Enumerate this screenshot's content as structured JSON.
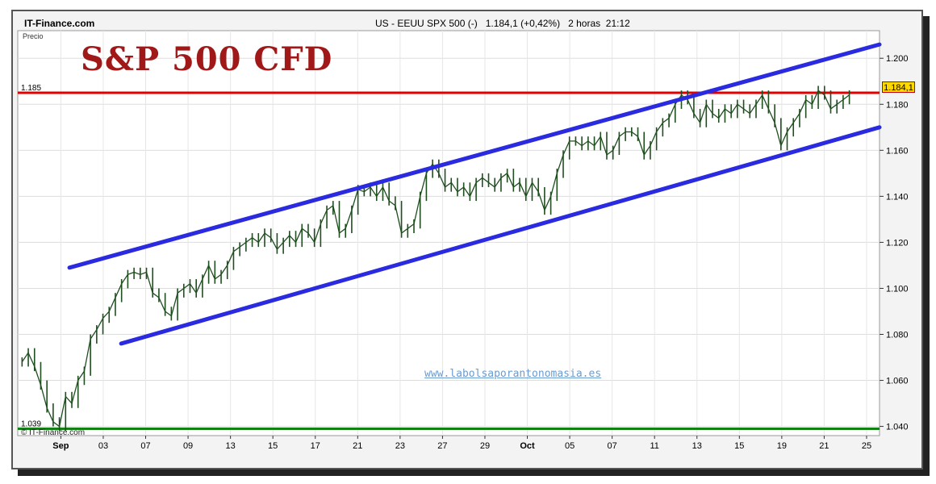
{
  "header": {
    "brand": "IT-Finance.com",
    "instrument": "US - EEUU SPX 500 (-)   1.184,1 (+0,42%)   2 horas  21:12"
  },
  "title": "S&P 500 CFD",
  "price_axis_label": "Precio",
  "watermark": "www.labolsaporantonomasia.es",
  "copyright": "© IT-Finance.com",
  "last_price_tag": "1.184,1",
  "colors": {
    "candles": "#1f4f1f",
    "channel": "#2a2ae0",
    "resistance": "#e00000",
    "support": "#138013",
    "title": "#a01818"
  },
  "chart_data": {
    "type": "line",
    "series": [
      {
        "values": [
          1068,
          1072,
          1066,
          1058,
          1048,
          1042,
          1040,
          1053,
          1050,
          1060,
          1064,
          1078,
          1082,
          1087,
          1090,
          1096,
          1102,
          1106,
          1107,
          1106,
          1107,
          1098,
          1096,
          1090,
          1088,
          1098,
          1100,
          1102,
          1098,
          1104,
          1110,
          1104,
          1106,
          1110,
          1116,
          1118,
          1120,
          1122,
          1120,
          1124,
          1122,
          1117,
          1120,
          1123,
          1120,
          1126,
          1124,
          1120,
          1128,
          1134,
          1136,
          1124,
          1126,
          1134,
          1143,
          1142,
          1144,
          1140,
          1144,
          1138,
          1136,
          1124,
          1126,
          1128,
          1140,
          1150,
          1154,
          1150,
          1144,
          1146,
          1142,
          1144,
          1140,
          1146,
          1148,
          1146,
          1144,
          1148,
          1150,
          1144,
          1146,
          1140,
          1146,
          1142,
          1134,
          1140,
          1150,
          1158,
          1164,
          1164,
          1162,
          1164,
          1162,
          1166,
          1158,
          1160,
          1166,
          1168,
          1168,
          1166,
          1158,
          1162,
          1168,
          1172,
          1174,
          1180,
          1184,
          1182,
          1176,
          1172,
          1180,
          1176,
          1174,
          1178,
          1176,
          1180,
          1178,
          1176,
          1180,
          1184,
          1178,
          1172,
          1162,
          1168,
          1172,
          1176,
          1182,
          1180,
          1186,
          1184,
          1178,
          1180,
          1182,
          1184.1
        ]
      }
    ],
    "x_ticks": [
      "Sep",
      "03",
      "07",
      "09",
      "13",
      "15",
      "17",
      "21",
      "23",
      "27",
      "29",
      "Oct",
      "05",
      "07",
      "11",
      "13",
      "15",
      "19",
      "21",
      "25"
    ],
    "y_ticks": [
      "1.040",
      "1.060",
      "1.080",
      "1.100",
      "1.120",
      "1.140",
      "1.160",
      "1.180",
      "1.200"
    ],
    "ylim": [
      1036,
      1212
    ],
    "hlines": [
      {
        "label": "1.185",
        "value": 1185,
        "color": "#e00000"
      },
      {
        "label": "1.039",
        "value": 1039,
        "color": "#138013"
      }
    ],
    "channel_lines": [
      {
        "x": [
          0.06,
          1.0
        ],
        "y": [
          1109,
          1206
        ]
      },
      {
        "x": [
          0.12,
          1.0
        ],
        "y": [
          1076,
          1170
        ]
      }
    ],
    "grid": true
  }
}
